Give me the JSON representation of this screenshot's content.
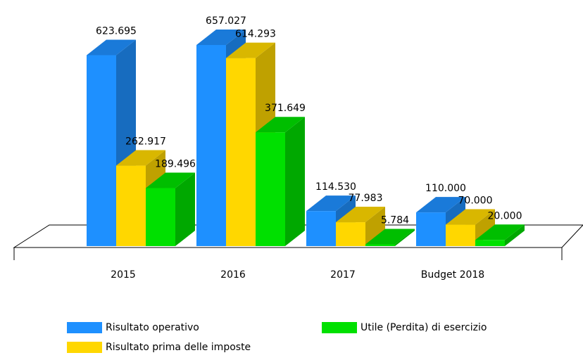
{
  "chart_data": {
    "type": "bar3d",
    "categories": [
      "2015",
      "2016",
      "2017",
      "Budget 2018"
    ],
    "series": [
      {
        "name": "Risultato operativo",
        "color": "#1e90ff",
        "values": [
          623695,
          657027,
          114530,
          110000
        ],
        "value_labels": [
          "623.695",
          "657.027",
          "114.530",
          "110.000"
        ]
      },
      {
        "name": "Risultato prima delle imposte",
        "color": "#ffd700",
        "values": [
          262917,
          614293,
          77983,
          70000
        ],
        "value_labels": [
          "262.917",
          "614.293",
          "77.983",
          "70.000"
        ]
      },
      {
        "name": "Utile (Perdita) di esercizio",
        "color": "#00e000",
        "values": [
          189496,
          371649,
          5784,
          20000
        ],
        "value_labels": [
          "189.496",
          "371.649",
          "5.784",
          "20.000"
        ]
      }
    ]
  }
}
